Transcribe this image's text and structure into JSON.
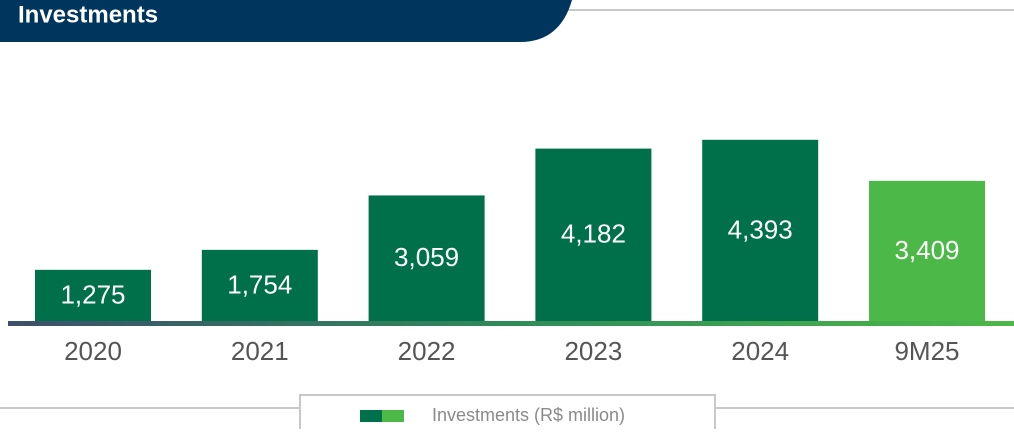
{
  "chart_data": {
    "type": "bar",
    "title": "Investments",
    "categories": [
      "2020",
      "2021",
      "2022",
      "2023",
      "2024",
      "9M25"
    ],
    "series": [
      {
        "name": "Investments (R$ million)",
        "values": [
          1275,
          1754,
          3059,
          4182,
          4393,
          3409
        ],
        "value_labels": [
          "1,275",
          "1,754",
          "3,059",
          "4,182",
          "4,393",
          "3,409"
        ],
        "colors": [
          "#00704a",
          "#00704a",
          "#00704a",
          "#00704a",
          "#00704a",
          "#4cb848"
        ]
      }
    ]
  }
}
